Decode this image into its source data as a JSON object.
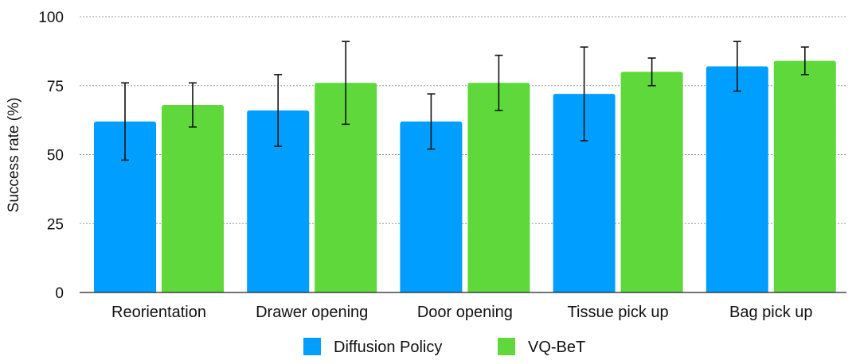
{
  "chart_data": {
    "type": "bar",
    "title": "",
    "xlabel": "",
    "ylabel": "Success rate (%)",
    "ylim": [
      0,
      100
    ],
    "yticks": [
      0,
      25,
      50,
      75,
      100
    ],
    "grid": true,
    "legend_position": "bottom",
    "categories": [
      "Reorientation",
      "Drawer opening",
      "Door opening",
      "Tissue pick up",
      "Bag pick up"
    ],
    "series": [
      {
        "name": "Diffusion Policy",
        "color": "#009FFF",
        "values": [
          62,
          66,
          62,
          72,
          82
        ],
        "err_low": [
          48,
          53,
          52,
          55,
          73
        ],
        "err_high": [
          76,
          79,
          72,
          89,
          91
        ]
      },
      {
        "name": "VQ-BeT",
        "color": "#5FD83C",
        "values": [
          68,
          76,
          76,
          80,
          84
        ],
        "err_low": [
          60,
          61,
          66,
          75,
          79
        ],
        "err_high": [
          76,
          91,
          86,
          85,
          89
        ]
      }
    ]
  }
}
